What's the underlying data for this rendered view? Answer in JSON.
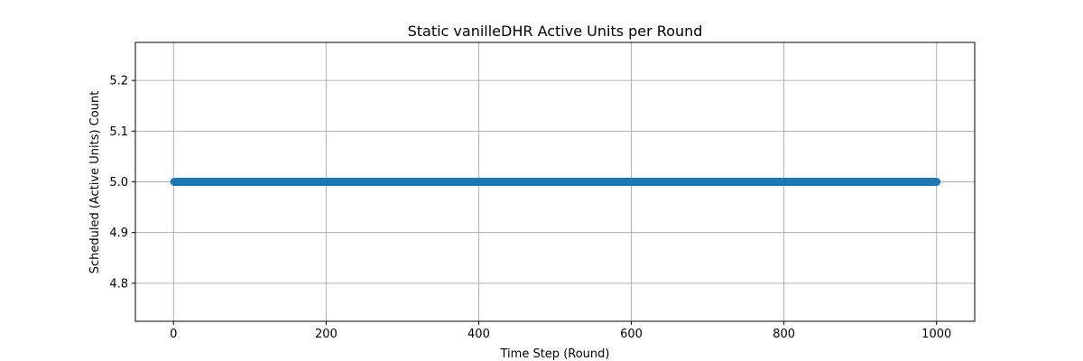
{
  "chart_data": {
    "type": "line",
    "title": "Static vanilleDHR Active Units per Round",
    "xlabel": "Time Step (Round)",
    "ylabel": "Scheduled (Active Units) Count",
    "xlim": [
      -50,
      1050
    ],
    "ylim": [
      4.725,
      5.275
    ],
    "xticks": [
      0,
      200,
      400,
      600,
      800,
      1000
    ],
    "yticks": [
      4.8,
      4.9,
      5.0,
      5.1,
      5.2
    ],
    "xtick_labels": [
      "0",
      "200",
      "400",
      "600",
      "800",
      "1000"
    ],
    "ytick_labels": [
      "4.8",
      "4.9",
      "5.0",
      "5.1",
      "5.2"
    ],
    "grid": true,
    "marker": "circle",
    "color": "#1f77b4",
    "series": [
      {
        "x_start": 1,
        "x_end": 1000,
        "x_step": 1,
        "y_constant": 5.0
      }
    ]
  }
}
